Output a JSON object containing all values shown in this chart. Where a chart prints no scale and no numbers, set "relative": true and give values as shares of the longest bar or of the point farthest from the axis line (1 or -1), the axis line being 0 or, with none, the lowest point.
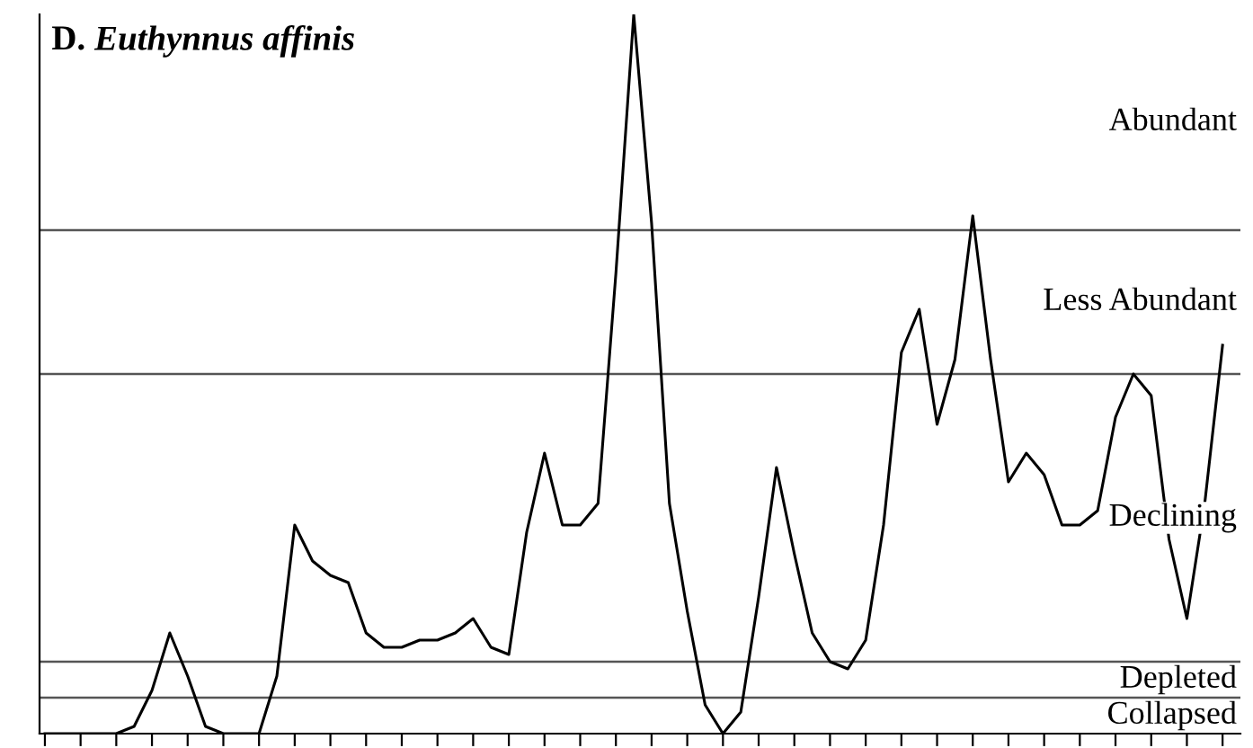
{
  "chart_data": {
    "type": "line",
    "title": "D. Euthynnus affinis",
    "relative": true,
    "color": "#000000",
    "categories": [
      null,
      null,
      null,
      null,
      null,
      null,
      null,
      null,
      null,
      null,
      null,
      null,
      null,
      null,
      null,
      null,
      null,
      null,
      null,
      null,
      null,
      null,
      null,
      null,
      null,
      null,
      null,
      null,
      null,
      null,
      null,
      null,
      null,
      null,
      null,
      null,
      null,
      null,
      null,
      null,
      null,
      null,
      null,
      null,
      null,
      null,
      null,
      null,
      null,
      null,
      null,
      null,
      null,
      null,
      null,
      null,
      null,
      null,
      null,
      null,
      null,
      null,
      null,
      null,
      null,
      null,
      null
    ],
    "values": [
      0,
      0,
      0,
      0,
      0,
      0.01,
      0.06,
      0.14,
      0.08,
      0.01,
      0,
      0,
      0,
      0.08,
      0.29,
      0.24,
      0.22,
      0.21,
      0.14,
      0.12,
      0.12,
      0.13,
      0.13,
      0.14,
      0.16,
      0.12,
      0.11,
      0.28,
      0.39,
      0.29,
      0.29,
      0.32,
      0.64,
      1.0,
      0.71,
      0.32,
      0.17,
      0.04,
      0,
      0.03,
      0.19,
      0.37,
      0.25,
      0.14,
      0.1,
      0.09,
      0.13,
      0.29,
      0.53,
      0.59,
      0.43,
      0.52,
      0.72,
      0.52,
      0.35,
      0.39,
      0.36,
      0.29,
      0.29,
      0.31,
      0.44,
      0.5,
      0.47,
      0.27,
      0.16,
      0.32,
      0.54
    ],
    "ref_lines": [
      {
        "axis": "y",
        "value": 0.7,
        "color": "#555555"
      },
      {
        "axis": "y",
        "value": 0.5,
        "color": "#555555"
      },
      {
        "axis": "y",
        "value": 0.1,
        "color": "#555555"
      },
      {
        "axis": "y",
        "value": 0.05,
        "color": "#555555"
      }
    ],
    "annotations": [
      "Abundant",
      "Less Abundant",
      "Declining",
      "Depleted",
      "Collapsed"
    ],
    "grid": false,
    "legend": false,
    "marker": "none",
    "line_style": "solid"
  }
}
